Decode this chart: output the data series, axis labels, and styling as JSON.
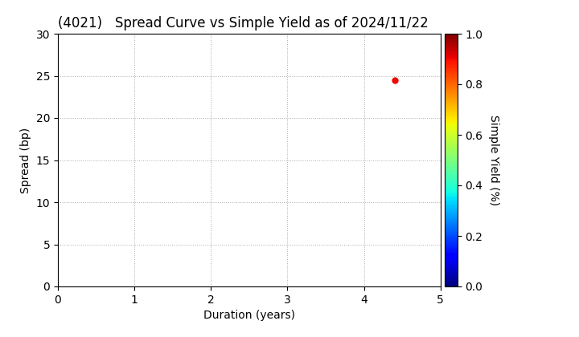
{
  "title": "(4021)   Spread Curve vs Simple Yield as of 2024/11/22",
  "xlabel": "Duration (years)",
  "ylabel": "Spread (bp)",
  "colorbar_label": "Simple Yield (%)",
  "xlim": [
    0,
    5
  ],
  "ylim": [
    0,
    30
  ],
  "xticks": [
    0,
    1,
    2,
    3,
    4,
    5
  ],
  "yticks": [
    0,
    5,
    10,
    15,
    20,
    25,
    30
  ],
  "point_x": 4.4,
  "point_y": 24.5,
  "point_simple_yield": 0.9,
  "colormap": "jet",
  "colorbar_ticks": [
    0.0,
    0.2,
    0.4,
    0.6,
    0.8,
    1.0
  ],
  "background_color": "#ffffff",
  "title_fontsize": 12,
  "label_fontsize": 10,
  "tick_fontsize": 10
}
